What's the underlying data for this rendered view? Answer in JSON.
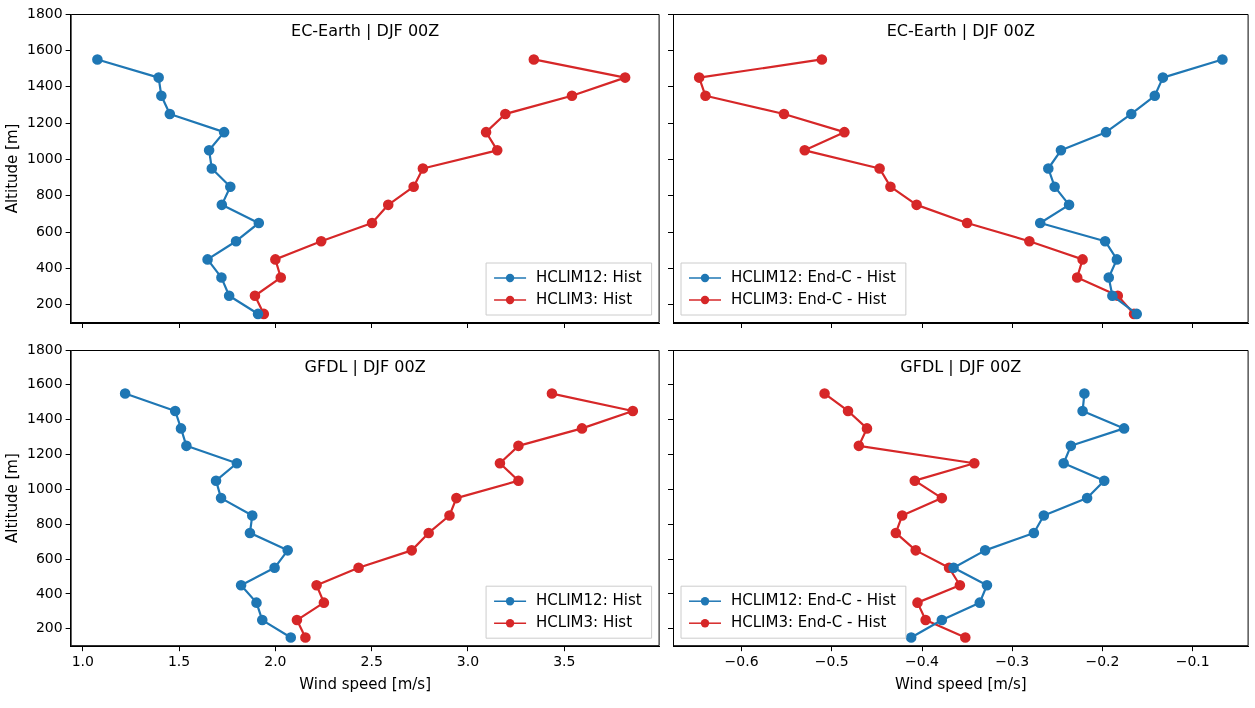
{
  "chart_data": [
    {
      "type": "line",
      "title": "EC-Earth | DJF 00Z",
      "ylabel": "Altitude [m]",
      "xlim": [
        0.937,
        3.995
      ],
      "ylim": [
        100,
        1800
      ],
      "xticks": [
        1,
        1.5,
        2,
        2.5,
        3,
        3.5
      ],
      "yticks": [
        200,
        400,
        600,
        800,
        1000,
        1200,
        1400,
        1600,
        1800
      ],
      "tick_labels": "y",
      "legend": "bottom right",
      "marker": "circle",
      "line_style": "solid",
      "series": [
        {
          "name": "HCLIM12: Hist",
          "color": "#1f77b4",
          "x": [
            1.076,
            1.394,
            1.408,
            1.452,
            1.734,
            1.656,
            1.67,
            1.766,
            1.722,
            1.914,
            1.796,
            1.648,
            1.72,
            1.76,
            1.91
          ],
          "values": [
            1550,
            1450,
            1350,
            1250,
            1150,
            1050,
            950,
            850,
            750,
            650,
            550,
            450,
            350,
            250,
            150
          ]
        },
        {
          "name": "HCLIM3: Hist",
          "color": "#d62728",
          "x": [
            3.342,
            3.816,
            3.54,
            3.194,
            3.094,
            3.152,
            2.766,
            2.718,
            2.586,
            2.502,
            2.238,
            2.0,
            2.028,
            1.894,
            1.94
          ],
          "values": [
            1550,
            1450,
            1350,
            1250,
            1150,
            1050,
            950,
            850,
            750,
            650,
            550,
            450,
            350,
            250,
            150
          ]
        }
      ]
    },
    {
      "type": "line",
      "title": "EC-Earth | DJF 00Z",
      "xlim": [
        -0.676,
        -0.038
      ],
      "ylim": [
        100,
        1800
      ],
      "xticks": [
        -0.6,
        -0.5,
        -0.4,
        -0.3,
        -0.2,
        -0.1
      ],
      "yticks": [
        200,
        400,
        600,
        800,
        1000,
        1200,
        1400,
        1600,
        1800
      ],
      "tick_labels": false,
      "legend": "bottom left",
      "marker": "circle",
      "line_style": "solid",
      "series": [
        {
          "name": "HCLIM12: End-C - Hist",
          "color": "#1f77b4",
          "x": [
            -0.067,
            -0.133,
            -0.142,
            -0.168,
            -0.196,
            -0.246,
            -0.26,
            -0.253,
            -0.237,
            -0.269,
            -0.197,
            -0.184,
            -0.193,
            -0.189,
            -0.162
          ],
          "values": [
            1550,
            1450,
            1350,
            1250,
            1150,
            1050,
            950,
            850,
            750,
            650,
            550,
            450,
            350,
            250,
            150
          ]
        },
        {
          "name": "HCLIM3: End-C - Hist",
          "color": "#d62728",
          "x": [
            -0.511,
            -0.647,
            -0.64,
            -0.553,
            -0.486,
            -0.53,
            -0.447,
            -0.435,
            -0.406,
            -0.35,
            -0.281,
            -0.222,
            -0.228,
            -0.183,
            -0.165
          ],
          "values": [
            1550,
            1450,
            1350,
            1250,
            1150,
            1050,
            950,
            850,
            750,
            650,
            550,
            450,
            350,
            250,
            150
          ]
        }
      ]
    },
    {
      "type": "line",
      "title": "GFDL | DJF 00Z",
      "xlabel": "Wind speed [m/s]",
      "ylabel": "Altitude [m]",
      "xlim": [
        0.937,
        3.995
      ],
      "ylim": [
        100,
        1800
      ],
      "xticks": [
        {
          "value": 1,
          "label": "1.0"
        },
        1.5,
        {
          "value": 2,
          "label": "2.0"
        },
        2.5,
        {
          "value": 3,
          "label": "3.0"
        },
        3.5
      ],
      "yticks": [
        200,
        400,
        600,
        800,
        1000,
        1200,
        1400,
        1600,
        1800
      ],
      "legend": "bottom right",
      "marker": "circle",
      "line_style": "solid",
      "series": [
        {
          "name": "HCLIM12: Hist",
          "color": "#1f77b4",
          "x": [
            1.22,
            1.48,
            1.51,
            1.538,
            1.8,
            1.692,
            1.718,
            1.88,
            1.868,
            2.064,
            1.996,
            1.822,
            1.902,
            1.932,
            2.08
          ],
          "values": [
            1550,
            1450,
            1350,
            1250,
            1150,
            1050,
            950,
            850,
            750,
            650,
            550,
            450,
            350,
            250,
            150
          ]
        },
        {
          "name": "HCLIM3: Hist",
          "color": "#d62728",
          "x": [
            3.436,
            3.856,
            3.592,
            3.262,
            3.166,
            3.262,
            2.94,
            2.904,
            2.796,
            2.708,
            2.432,
            2.214,
            2.252,
            2.112,
            2.156
          ],
          "values": [
            1550,
            1450,
            1350,
            1250,
            1150,
            1050,
            950,
            850,
            750,
            650,
            550,
            450,
            350,
            250,
            150
          ]
        }
      ]
    },
    {
      "type": "line",
      "title": "GFDL | DJF 00Z",
      "xlabel": "Wind speed [m/s]",
      "xlim": [
        -0.676,
        -0.038
      ],
      "ylim": [
        100,
        1800
      ],
      "xticks": [
        {
          "value": -0.6,
          "label": "−0.6"
        },
        {
          "value": -0.5,
          "label": "−0.5"
        },
        {
          "value": -0.4,
          "label": "−0.4"
        },
        {
          "value": -0.3,
          "label": "−0.3"
        },
        {
          "value": -0.2,
          "label": "−0.2"
        },
        {
          "value": -0.1,
          "label": "−0.1"
        }
      ],
      "yticks": [
        200,
        400,
        600,
        800,
        1000,
        1200,
        1400,
        1600,
        1800
      ],
      "tick_labels": "x",
      "legend": "bottom left",
      "marker": "circle",
      "line_style": "solid",
      "series": [
        {
          "name": "HCLIM12: End-C - Hist",
          "color": "#1f77b4",
          "x": [
            -0.22,
            -0.222,
            -0.176,
            -0.235,
            -0.243,
            -0.198,
            -0.217,
            -0.265,
            -0.276,
            -0.33,
            -0.365,
            -0.328,
            -0.336,
            -0.378,
            -0.412
          ],
          "values": [
            1550,
            1450,
            1350,
            1250,
            1150,
            1050,
            950,
            850,
            750,
            650,
            550,
            450,
            350,
            250,
            150
          ]
        },
        {
          "name": "HCLIM3: End-C - Hist",
          "color": "#d62728",
          "x": [
            -0.508,
            -0.482,
            -0.461,
            -0.47,
            -0.342,
            -0.408,
            -0.378,
            -0.422,
            -0.429,
            -0.407,
            -0.37,
            -0.358,
            -0.405,
            -0.396,
            -0.352
          ],
          "values": [
            1550,
            1450,
            1350,
            1250,
            1150,
            1050,
            950,
            850,
            750,
            650,
            550,
            450,
            350,
            250,
            150
          ]
        }
      ]
    }
  ]
}
